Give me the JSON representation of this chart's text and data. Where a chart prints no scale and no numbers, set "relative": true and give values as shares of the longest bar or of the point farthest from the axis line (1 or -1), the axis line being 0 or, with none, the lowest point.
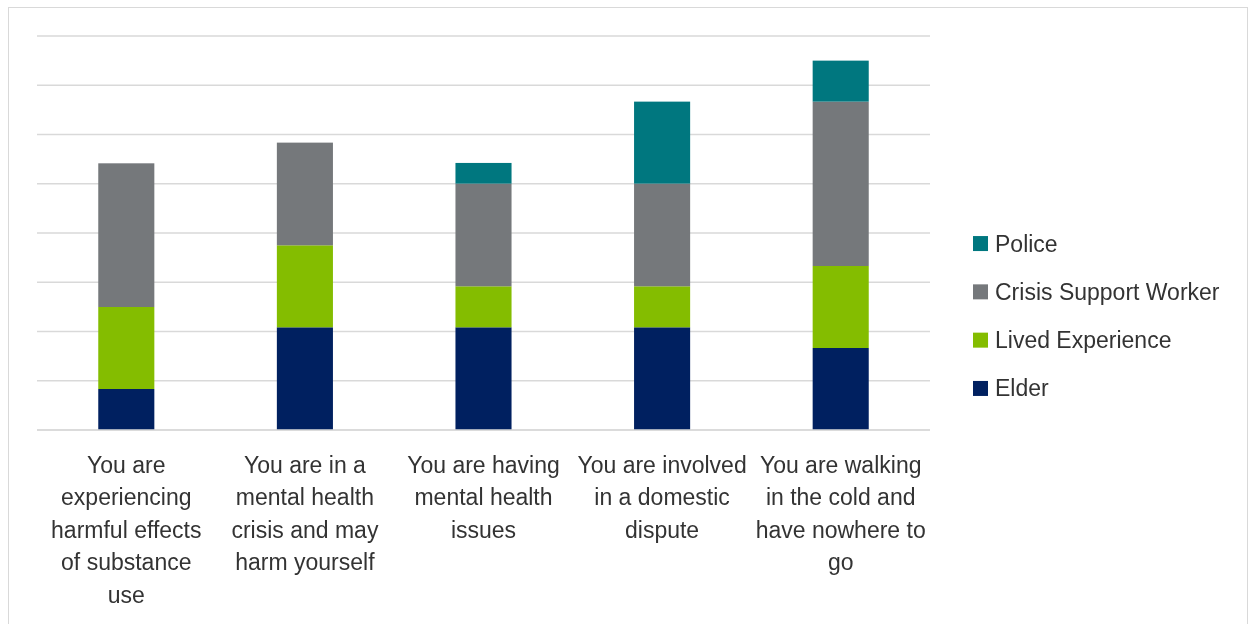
{
  "chart_data": {
    "type": "bar",
    "stacked": true,
    "relative": true,
    "categories": [
      "You are experiencing harmful effects of substance use",
      "You are in a mental health crisis and may harm yourself",
      "You are having mental health issues",
      "You are involved in a domestic dispute",
      "You are walking in the cold and have nowhere to go"
    ],
    "series": [
      {
        "name": "Elder",
        "color": "#002060",
        "values": [
          0.111,
          0.278,
          0.278,
          0.278,
          0.222
        ]
      },
      {
        "name": "Lived Experience",
        "color": "#84bd00",
        "values": [
          0.222,
          0.222,
          0.111,
          0.111,
          0.222
        ]
      },
      {
        "name": "Crisis Support Worker",
        "color": "#75787b",
        "values": [
          0.389,
          0.278,
          0.278,
          0.278,
          0.445
        ]
      },
      {
        "name": "Police",
        "color": "#00777f",
        "values": [
          null,
          null,
          0.056,
          0.222,
          0.111
        ]
      }
    ],
    "grid": "y",
    "legend": "right",
    "tick_labels": "x"
  }
}
